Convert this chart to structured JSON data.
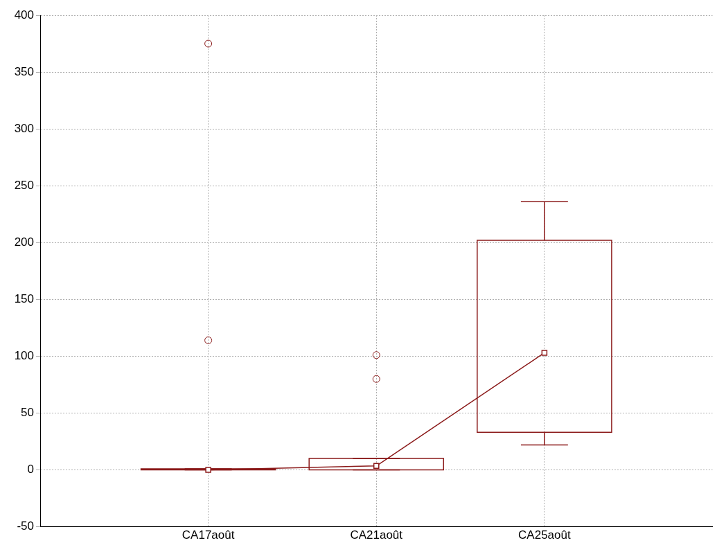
{
  "chart_data": {
    "type": "box",
    "categories": [
      "CA17août",
      "CA21août",
      "CA25août"
    ],
    "ylim": [
      -50,
      400
    ],
    "yticks": [
      -50,
      0,
      50,
      100,
      150,
      200,
      250,
      300,
      350,
      400
    ],
    "grid": true,
    "series": [
      {
        "type": "box",
        "color": "#8b1a1a",
        "boxes": [
          {
            "low": 0,
            "q1": 0,
            "q3": 1,
            "high": 1,
            "outliers": [
              375,
              114
            ]
          },
          {
            "low": 0,
            "q1": 0,
            "q3": 10,
            "high": 10,
            "outliers": [
              101,
              80
            ]
          },
          {
            "low": 22,
            "q1": 33,
            "q3": 202,
            "high": 236
          }
        ]
      },
      {
        "type": "line",
        "color": "#8b1a1a",
        "marker": "square",
        "values": [
          0,
          3.5,
          103
        ]
      }
    ]
  }
}
